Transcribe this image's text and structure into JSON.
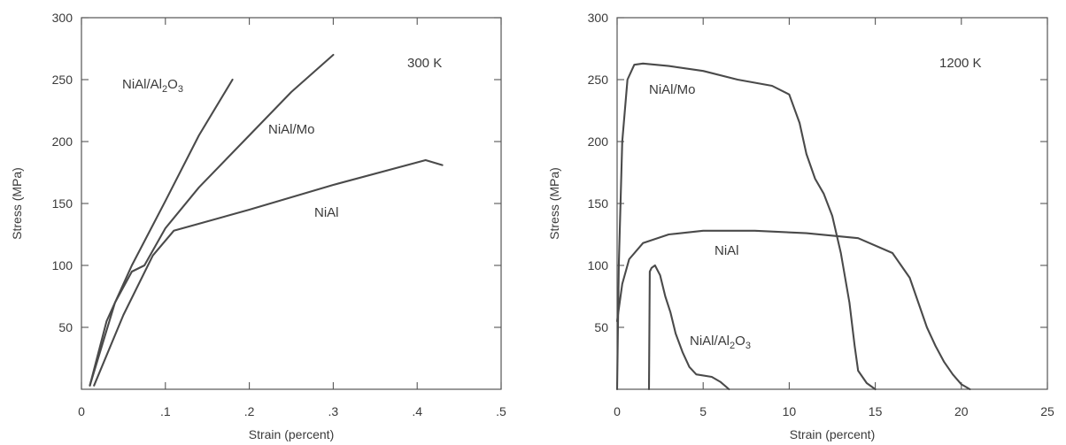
{
  "chart_data": [
    {
      "type": "line",
      "title": "",
      "xlabel": "Strain (percent)",
      "ylabel": "Stress (MPa)",
      "xlim": [
        0,
        0.5
      ],
      "ylim": [
        0,
        300
      ],
      "xticks": [
        0,
        0.1,
        0.2,
        0.3,
        0.4,
        0.5
      ],
      "xtick_labels": [
        "0",
        ".1",
        ".2",
        ".3",
        ".4",
        ".5"
      ],
      "yticks": [
        50,
        100,
        150,
        200,
        250,
        300
      ],
      "ytick_labels": [
        "50",
        "100",
        "150",
        "200",
        "250",
        "300"
      ],
      "grid": false,
      "temperature_label": "300 K",
      "series": [
        {
          "name": "NiAl/Al2O3",
          "label_main": "NiAl/Al",
          "label_sub": "2",
          "label_main2": "O",
          "label_sub2": "3",
          "x": [
            0.01,
            0.03,
            0.06,
            0.1,
            0.14,
            0.18
          ],
          "y": [
            3,
            55,
            100,
            152,
            205,
            250
          ]
        },
        {
          "name": "NiAl/Mo",
          "label": "NiAl/Mo",
          "x": [
            0.01,
            0.04,
            0.06,
            0.075,
            0.1,
            0.14,
            0.2,
            0.25,
            0.3
          ],
          "y": [
            3,
            70,
            95,
            100,
            130,
            163,
            205,
            240,
            270
          ]
        },
        {
          "name": "NiAl",
          "label": "NiAl",
          "x": [
            0.015,
            0.05,
            0.085,
            0.11,
            0.2,
            0.3,
            0.41,
            0.43
          ],
          "y": [
            3,
            60,
            108,
            128,
            145,
            165,
            185,
            181
          ]
        }
      ]
    },
    {
      "type": "line",
      "title": "",
      "xlabel": "Strain (percent)",
      "ylabel": "Stress (MPa)",
      "xlim": [
        0,
        25
      ],
      "ylim": [
        0,
        300
      ],
      "xticks": [
        0,
        5,
        10,
        15,
        20,
        25
      ],
      "xtick_labels": [
        "0",
        "5",
        "10",
        "15",
        "20",
        "25"
      ],
      "yticks": [
        50,
        100,
        150,
        200,
        250,
        300
      ],
      "ytick_labels": [
        "50",
        "100",
        "150",
        "200",
        "250",
        "300"
      ],
      "grid": false,
      "temperature_label": "1200 K",
      "series": [
        {
          "name": "NiAl/Mo",
          "label": "NiAl/Mo",
          "x": [
            0,
            0.1,
            0.3,
            0.6,
            1,
            1.5,
            3,
            5,
            7,
            9,
            10,
            10.6,
            11,
            11.5,
            12,
            12.5,
            13,
            13.5,
            13.8,
            14,
            14.5,
            15
          ],
          "y": [
            0,
            100,
            200,
            250,
            262,
            263,
            261,
            257,
            250,
            245,
            238,
            215,
            190,
            170,
            158,
            140,
            110,
            70,
            35,
            15,
            5,
            0
          ]
        },
        {
          "name": "NiAl",
          "label": "NiAl",
          "x": [
            0,
            0.3,
            0.7,
            1.5,
            3,
            5,
            8,
            11,
            14,
            16,
            17,
            17.5,
            18,
            18.5,
            19,
            19.5,
            20,
            20.5
          ],
          "y": [
            55,
            85,
            105,
            118,
            125,
            128,
            128,
            126,
            122,
            110,
            90,
            70,
            50,
            35,
            22,
            12,
            4,
            0
          ]
        },
        {
          "name": "NiAl/Al2O3",
          "label_main": "NiAl/Al",
          "label_sub": "2",
          "label_main2": "O",
          "label_sub2": "3",
          "x": [
            1.85,
            1.9,
            2.0,
            2.2,
            2.5,
            2.8,
            3.1,
            3.4,
            3.8,
            4.2,
            4.6,
            5.5,
            6.0,
            6.5
          ],
          "y": [
            0,
            95,
            98,
            100,
            92,
            75,
            62,
            45,
            30,
            18,
            12,
            10,
            6,
            0
          ]
        }
      ]
    }
  ]
}
